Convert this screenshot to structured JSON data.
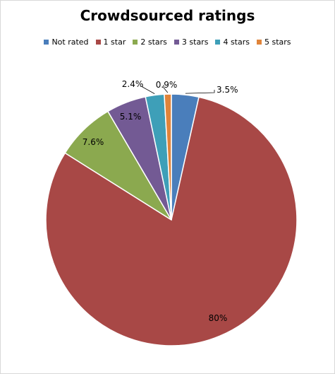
{
  "chart_data": {
    "type": "pie",
    "title": "Crowdsourced ratings",
    "legend_position": "top",
    "slices": [
      {
        "name": "Not rated",
        "value": 3.5,
        "label": "3.5%",
        "color": "#4a7ebb"
      },
      {
        "name": "1 star",
        "value": 80,
        "label": "80%",
        "color": "#a84846"
      },
      {
        "name": "2 stars",
        "value": 7.6,
        "label": "7.6%",
        "color": "#8ba94f"
      },
      {
        "name": "3 stars",
        "value": 5.1,
        "label": "5.1%",
        "color": "#735a94"
      },
      {
        "name": "4 stars",
        "value": 2.4,
        "label": "2.4%",
        "color": "#3e9fb8"
      },
      {
        "name": "5 stars",
        "value": 0.9,
        "label": "0.9%",
        "color": "#e0843a"
      }
    ]
  }
}
